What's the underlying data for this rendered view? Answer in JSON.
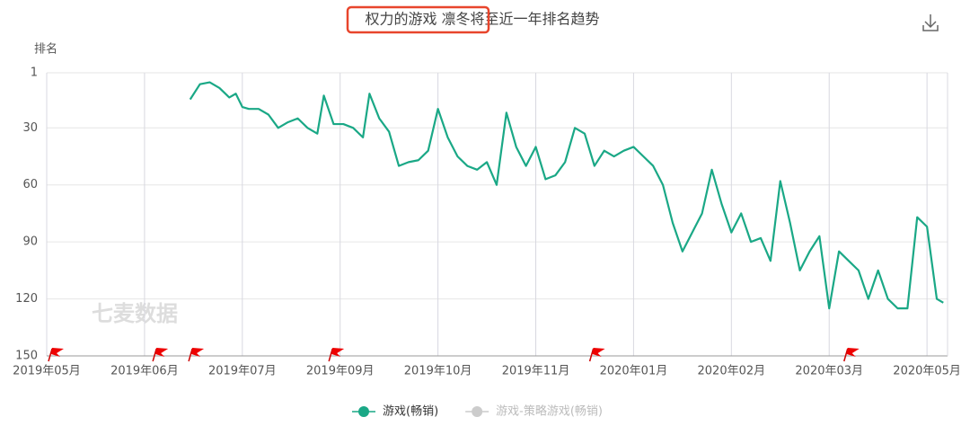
{
  "chart_data": {
    "type": "line",
    "title": "权力的游戏 凛冬将至近一年排名趋势",
    "y_label": "排名",
    "watermark": "七麦数据",
    "y_reversed": true,
    "ylim": [
      1,
      150
    ],
    "yticks": [
      1,
      30,
      60,
      90,
      120,
      150
    ],
    "xlim": [
      0,
      276.3
    ],
    "xticks": [
      {
        "value": 0,
        "label": "2019年05月"
      },
      {
        "value": 30,
        "label": "2019年06月"
      },
      {
        "value": 60,
        "label": "2019年07月"
      },
      {
        "value": 90,
        "label": "2019年09月"
      },
      {
        "value": 120,
        "label": "2019年10月"
      },
      {
        "value": 150,
        "label": "2019年11月"
      },
      {
        "value": 180,
        "label": "2020年01月"
      },
      {
        "value": 210,
        "label": "2020年02月"
      },
      {
        "value": 240,
        "label": "2020年03月"
      },
      {
        "value": 270,
        "label": "2020年05月"
      }
    ],
    "grid": true,
    "event_flags": [
      0,
      32,
      43,
      86,
      166,
      244
    ],
    "x": [
      44,
      47,
      50,
      53,
      56,
      58,
      60,
      62,
      65,
      68,
      71,
      74,
      77,
      80,
      83,
      85,
      88,
      91,
      94,
      97,
      99,
      102,
      105,
      108,
      111,
      114,
      117,
      120,
      123,
      126,
      129,
      132,
      135,
      138,
      141,
      144,
      147,
      150,
      153,
      156,
      159,
      162,
      165,
      168,
      171,
      174,
      177,
      180,
      183,
      186,
      189,
      192,
      195,
      198,
      201,
      204,
      207,
      210,
      213,
      216,
      219,
      222,
      225,
      228,
      231,
      234,
      237,
      240,
      243,
      246,
      249,
      252,
      255,
      258,
      261,
      264,
      267,
      270,
      273,
      275
    ],
    "series": [
      {
        "name": "游戏(畅销)",
        "color": "#1aa886",
        "values": [
          15,
          7,
          6,
          9,
          14,
          12,
          19,
          20,
          20,
          23,
          30,
          27,
          25,
          30,
          33,
          13,
          28,
          28,
          30,
          35,
          12,
          25,
          32,
          50,
          48,
          47,
          42,
          20,
          35,
          45,
          50,
          52,
          48,
          60,
          22,
          40,
          50,
          40,
          57,
          55,
          48,
          30,
          33,
          50,
          42,
          45,
          42,
          40,
          45,
          50,
          60,
          80,
          95,
          85,
          75,
          52,
          70,
          85,
          75,
          90,
          88,
          100,
          58,
          80,
          105,
          95,
          87,
          125,
          95,
          100,
          105,
          120,
          105,
          120,
          125,
          125,
          77,
          82,
          120,
          122
        ]
      }
    ],
    "inactive_series": [
      {
        "name": "游戏-策略游戏(畅销)",
        "color": "#cccccc"
      }
    ]
  }
}
